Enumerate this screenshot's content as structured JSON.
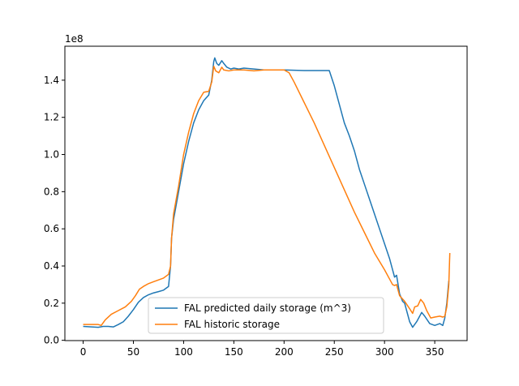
{
  "chart_data": {
    "type": "line",
    "title": "",
    "xlabel": "",
    "ylabel": "",
    "xlim": [
      -18.2,
      382.2
    ],
    "ylim": [
      -0.0015,
      1.5828
    ],
    "y_scale_label": "1e8",
    "xticks": [
      0,
      50,
      100,
      150,
      200,
      250,
      300,
      350
    ],
    "yticks": [
      0.0,
      0.2,
      0.4,
      0.6,
      0.8,
      1.0,
      1.2,
      1.4
    ],
    "ytick_labels": [
      "0.0",
      "0.2",
      "0.4",
      "0.6",
      "0.8",
      "1.0",
      "1.2",
      "1.4"
    ],
    "grid": false,
    "legend_position": "lower center",
    "series": [
      {
        "name": "FAL predicted daily storage (m^3)",
        "color": "#1f77b4",
        "points": [
          [
            0,
            0.075
          ],
          [
            15,
            0.07
          ],
          [
            20,
            0.075
          ],
          [
            25,
            0.075
          ],
          [
            30,
            0.072
          ],
          [
            35,
            0.085
          ],
          [
            40,
            0.1
          ],
          [
            45,
            0.13
          ],
          [
            50,
            0.165
          ],
          [
            55,
            0.205
          ],
          [
            60,
            0.23
          ],
          [
            65,
            0.245
          ],
          [
            70,
            0.255
          ],
          [
            75,
            0.262
          ],
          [
            80,
            0.27
          ],
          [
            85,
            0.29
          ],
          [
            87,
            0.4
          ],
          [
            88,
            0.55
          ],
          [
            90,
            0.65
          ],
          [
            95,
            0.8
          ],
          [
            100,
            0.95
          ],
          [
            105,
            1.07
          ],
          [
            110,
            1.17
          ],
          [
            115,
            1.24
          ],
          [
            120,
            1.29
          ],
          [
            125,
            1.32
          ],
          [
            128,
            1.4
          ],
          [
            130,
            1.5
          ],
          [
            131,
            1.52
          ],
          [
            133,
            1.49
          ],
          [
            135,
            1.48
          ],
          [
            138,
            1.505
          ],
          [
            140,
            1.49
          ],
          [
            143,
            1.47
          ],
          [
            147,
            1.46
          ],
          [
            150,
            1.465
          ],
          [
            155,
            1.46
          ],
          [
            160,
            1.465
          ],
          [
            170,
            1.46
          ],
          [
            180,
            1.455
          ],
          [
            200,
            1.455
          ],
          [
            220,
            1.452
          ],
          [
            245,
            1.452
          ],
          [
            250,
            1.37
          ],
          [
            255,
            1.27
          ],
          [
            260,
            1.17
          ],
          [
            265,
            1.1
          ],
          [
            270,
            1.02
          ],
          [
            275,
            0.92
          ],
          [
            280,
            0.84
          ],
          [
            285,
            0.76
          ],
          [
            290,
            0.68
          ],
          [
            295,
            0.6
          ],
          [
            300,
            0.52
          ],
          [
            305,
            0.44
          ],
          [
            308,
            0.38
          ],
          [
            310,
            0.34
          ],
          [
            312,
            0.35
          ],
          [
            315,
            0.25
          ],
          [
            318,
            0.21
          ],
          [
            320,
            0.2
          ],
          [
            322,
            0.16
          ],
          [
            325,
            0.1
          ],
          [
            328,
            0.07
          ],
          [
            332,
            0.1
          ],
          [
            335,
            0.13
          ],
          [
            337,
            0.15
          ],
          [
            340,
            0.13
          ],
          [
            345,
            0.09
          ],
          [
            350,
            0.08
          ],
          [
            355,
            0.09
          ],
          [
            358,
            0.08
          ],
          [
            360,
            0.12
          ],
          [
            362,
            0.2
          ],
          [
            364,
            0.32
          ]
        ]
      },
      {
        "name": "FAL historic storage",
        "color": "#ff7f0e",
        "points": [
          [
            0,
            0.085
          ],
          [
            15,
            0.085
          ],
          [
            18,
            0.08
          ],
          [
            22,
            0.11
          ],
          [
            28,
            0.14
          ],
          [
            35,
            0.16
          ],
          [
            42,
            0.18
          ],
          [
            48,
            0.21
          ],
          [
            52,
            0.24
          ],
          [
            56,
            0.275
          ],
          [
            60,
            0.29
          ],
          [
            65,
            0.305
          ],
          [
            70,
            0.315
          ],
          [
            75,
            0.325
          ],
          [
            80,
            0.335
          ],
          [
            85,
            0.355
          ],
          [
            87,
            0.4
          ],
          [
            88,
            0.55
          ],
          [
            90,
            0.68
          ],
          [
            95,
            0.83
          ],
          [
            100,
            1.0
          ],
          [
            105,
            1.12
          ],
          [
            110,
            1.22
          ],
          [
            115,
            1.29
          ],
          [
            120,
            1.335
          ],
          [
            125,
            1.34
          ],
          [
            128,
            1.39
          ],
          [
            130,
            1.475
          ],
          [
            132,
            1.45
          ],
          [
            135,
            1.44
          ],
          [
            138,
            1.47
          ],
          [
            140,
            1.455
          ],
          [
            145,
            1.45
          ],
          [
            150,
            1.455
          ],
          [
            160,
            1.455
          ],
          [
            170,
            1.45
          ],
          [
            180,
            1.455
          ],
          [
            200,
            1.455
          ],
          [
            205,
            1.44
          ],
          [
            210,
            1.39
          ],
          [
            220,
            1.28
          ],
          [
            230,
            1.17
          ],
          [
            240,
            1.05
          ],
          [
            250,
            0.93
          ],
          [
            260,
            0.81
          ],
          [
            270,
            0.69
          ],
          [
            280,
            0.58
          ],
          [
            290,
            0.47
          ],
          [
            300,
            0.38
          ],
          [
            305,
            0.33
          ],
          [
            308,
            0.3
          ],
          [
            310,
            0.295
          ],
          [
            312,
            0.3
          ],
          [
            315,
            0.24
          ],
          [
            320,
            0.21
          ],
          [
            325,
            0.17
          ],
          [
            328,
            0.145
          ],
          [
            330,
            0.18
          ],
          [
            333,
            0.185
          ],
          [
            336,
            0.22
          ],
          [
            339,
            0.2
          ],
          [
            342,
            0.16
          ],
          [
            346,
            0.12
          ],
          [
            350,
            0.125
          ],
          [
            355,
            0.13
          ],
          [
            358,
            0.125
          ],
          [
            360,
            0.13
          ],
          [
            362,
            0.18
          ],
          [
            364,
            0.3
          ],
          [
            365,
            0.47
          ]
        ]
      }
    ]
  }
}
